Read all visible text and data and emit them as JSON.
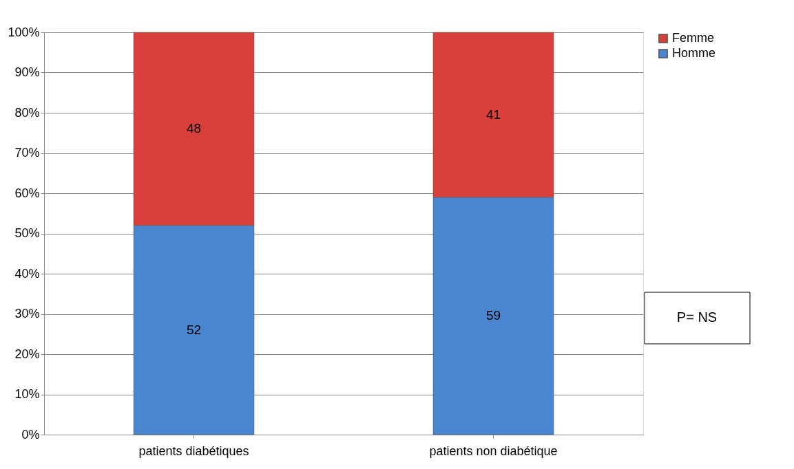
{
  "chart_data": {
    "type": "bar",
    "stacked": true,
    "categories": [
      "patients diabétiques",
      "patients non diabétique"
    ],
    "series": [
      {
        "name": "Homme",
        "color": "#4a86d0",
        "values": [
          52,
          59
        ]
      },
      {
        "name": "Femme",
        "color": "#d9403b",
        "values": [
          48,
          41
        ]
      }
    ],
    "ylim": [
      0,
      100
    ],
    "yticks": [
      {
        "value": 0,
        "label": "0%"
      },
      {
        "value": 10,
        "label": "10%"
      },
      {
        "value": 20,
        "label": "20%"
      },
      {
        "value": 30,
        "label": "30%"
      },
      {
        "value": 40,
        "label": "40%"
      },
      {
        "value": 50,
        "label": "50%"
      },
      {
        "value": 60,
        "label": "60%"
      },
      {
        "value": 70,
        "label": "70%"
      },
      {
        "value": 80,
        "label": "80%"
      },
      {
        "value": 90,
        "label": "90%"
      },
      {
        "value": 100,
        "label": "100%"
      }
    ],
    "grid": "y",
    "legend": "right",
    "data_labels": true,
    "annotations": [
      "P= NS"
    ]
  }
}
